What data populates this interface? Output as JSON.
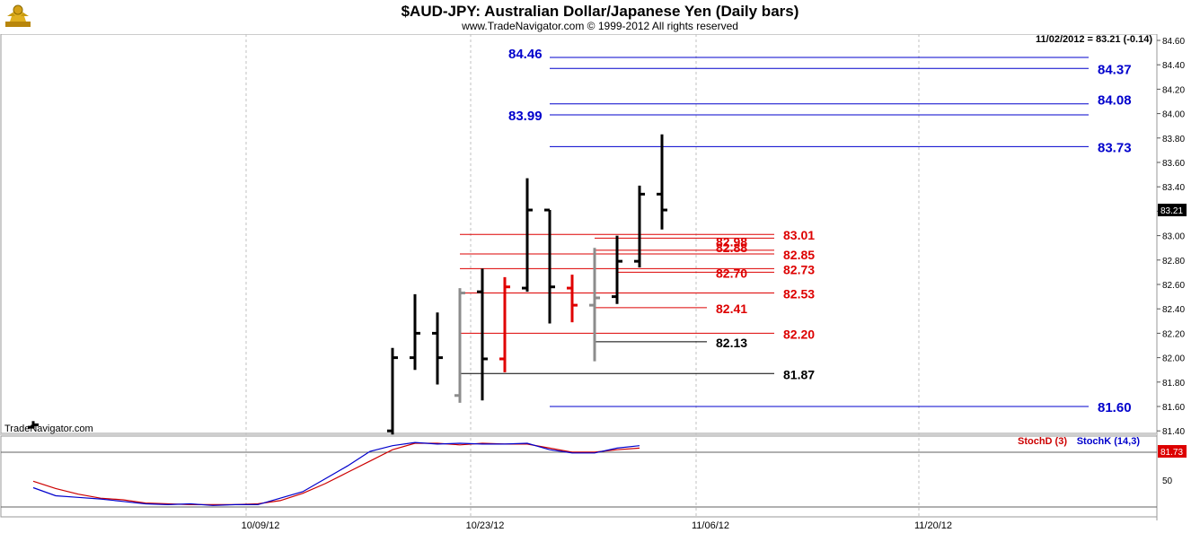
{
  "header": {
    "title": "$AUD-JPY:  Australian Dollar/Japanese Yen  (Daily bars)",
    "subtitle": "www.TradeNavigator.com © 1999-2012 All rights reserved",
    "last_quote": "11/02/2012 = 83.21 (-0.14)",
    "watermark": "TradeNavigator.com"
  },
  "colors": {
    "bar_up": "#000000",
    "bar_grey": "#8c8c8c",
    "bar_red": "#e00000",
    "blue_level": "#0000cc",
    "red_level": "#dd0000",
    "black_level": "#000000",
    "stoch_d": "#cc0000",
    "stoch_k": "#0000cc"
  },
  "chart_data": [
    {
      "type": "bar",
      "subtype": "ohlc",
      "ylim": [
        81.4,
        84.6
      ],
      "y_ticks": [
        "84.60",
        "84.40",
        "84.20",
        "84.00",
        "83.80",
        "83.60",
        "83.40",
        "83.20",
        "83.00",
        "82.80",
        "82.60",
        "82.40",
        "82.20",
        "82.00",
        "81.80",
        "81.60",
        "81.40"
      ],
      "x_tick_labels": [
        "10/09/12",
        "10/23/12",
        "11/06/12",
        "11/20/12"
      ],
      "last_price_label": "83.21",
      "bars": [
        {
          "o": 81.43,
          "h": 81.48,
          "l": 81.42,
          "c": 81.45,
          "color": "black"
        },
        {
          "o": 81.4,
          "h": 82.08,
          "l": 81.37,
          "c": 82.0,
          "color": "black"
        },
        {
          "o": 82.0,
          "h": 82.52,
          "l": 81.9,
          "c": 82.2,
          "color": "black"
        },
        {
          "o": 82.2,
          "h": 82.37,
          "l": 81.78,
          "c": 82.0,
          "color": "black"
        },
        {
          "o": 81.69,
          "h": 82.57,
          "l": 81.63,
          "c": 82.53,
          "color": "grey"
        },
        {
          "o": 82.54,
          "h": 82.73,
          "l": 81.65,
          "c": 81.99,
          "color": "black"
        },
        {
          "o": 81.99,
          "h": 82.66,
          "l": 81.88,
          "c": 82.58,
          "color": "red"
        },
        {
          "o": 82.57,
          "h": 83.47,
          "l": 82.54,
          "c": 83.21,
          "color": "black"
        },
        {
          "o": 83.21,
          "h": 83.21,
          "l": 82.28,
          "c": 82.58,
          "color": "black"
        },
        {
          "o": 82.57,
          "h": 82.68,
          "l": 82.29,
          "c": 82.43,
          "color": "red"
        },
        {
          "o": 82.43,
          "h": 82.9,
          "l": 81.97,
          "c": 82.49,
          "color": "grey"
        },
        {
          "o": 82.5,
          "h": 83.0,
          "l": 82.44,
          "c": 82.79,
          "color": "black"
        },
        {
          "o": 82.79,
          "h": 83.41,
          "l": 82.74,
          "c": 83.34,
          "color": "black"
        },
        {
          "o": 83.34,
          "h": 83.83,
          "l": 83.05,
          "c": 83.21,
          "color": "black"
        }
      ],
      "levels": [
        {
          "value": 84.46,
          "label": "84.46",
          "color": "blue",
          "side": "left"
        },
        {
          "value": 84.37,
          "label": "84.37",
          "color": "blue",
          "side": "right"
        },
        {
          "value": 84.08,
          "label": "84.08",
          "color": "blue",
          "side": "right"
        },
        {
          "value": 83.99,
          "label": "83.99",
          "color": "blue",
          "side": "left"
        },
        {
          "value": 83.73,
          "label": "83.73",
          "color": "blue",
          "side": "right"
        },
        {
          "value": 83.01,
          "label": "83.01",
          "color": "red",
          "side": "right"
        },
        {
          "value": 82.98,
          "label": "82.98",
          "color": "red",
          "side": "mid"
        },
        {
          "value": 82.88,
          "label": "82.88",
          "color": "red",
          "side": "mid"
        },
        {
          "value": 82.85,
          "label": "82.85",
          "color": "red",
          "side": "right"
        },
        {
          "value": 82.73,
          "label": "82.73",
          "color": "red",
          "side": "right"
        },
        {
          "value": 82.7,
          "label": "82.70",
          "color": "red",
          "side": "mid"
        },
        {
          "value": 82.53,
          "label": "82.53",
          "color": "red",
          "side": "right"
        },
        {
          "value": 82.41,
          "label": "82.41",
          "color": "red",
          "side": "mid"
        },
        {
          "value": 82.2,
          "label": "82.20",
          "color": "red",
          "side": "right"
        },
        {
          "value": 82.13,
          "label": "82.13",
          "color": "black",
          "side": "mid"
        },
        {
          "value": 81.87,
          "label": "81.87",
          "color": "black",
          "side": "right"
        },
        {
          "value": 81.6,
          "label": "81.60",
          "color": "blue",
          "side": "right"
        }
      ]
    },
    {
      "type": "line",
      "ylim": [
        0,
        100
      ],
      "y_ticks": [
        "50"
      ],
      "legend": [
        {
          "name": "StochD (3)",
          "color": "#cc0000"
        },
        {
          "name": "StochK (14,3)",
          "color": "#0000cc"
        }
      ],
      "last_value_label": "81.73",
      "series": [
        {
          "name": "StochD (3)",
          "values": [
            33,
            24,
            17,
            12,
            10,
            6,
            5,
            4,
            4,
            4,
            5,
            9,
            18,
            30,
            44,
            58,
            72,
            80,
            80,
            78,
            80,
            79,
            79,
            74,
            69,
            69,
            72,
            74
          ]
        },
        {
          "name": "StochK (14,3)",
          "values": [
            25,
            15,
            13,
            11,
            8,
            5,
            4,
            5,
            3,
            4,
            4,
            12,
            20,
            36,
            52,
            70,
            77,
            81,
            79,
            80,
            79,
            79,
            80,
            72,
            68,
            68,
            74,
            77
          ]
        }
      ]
    }
  ]
}
